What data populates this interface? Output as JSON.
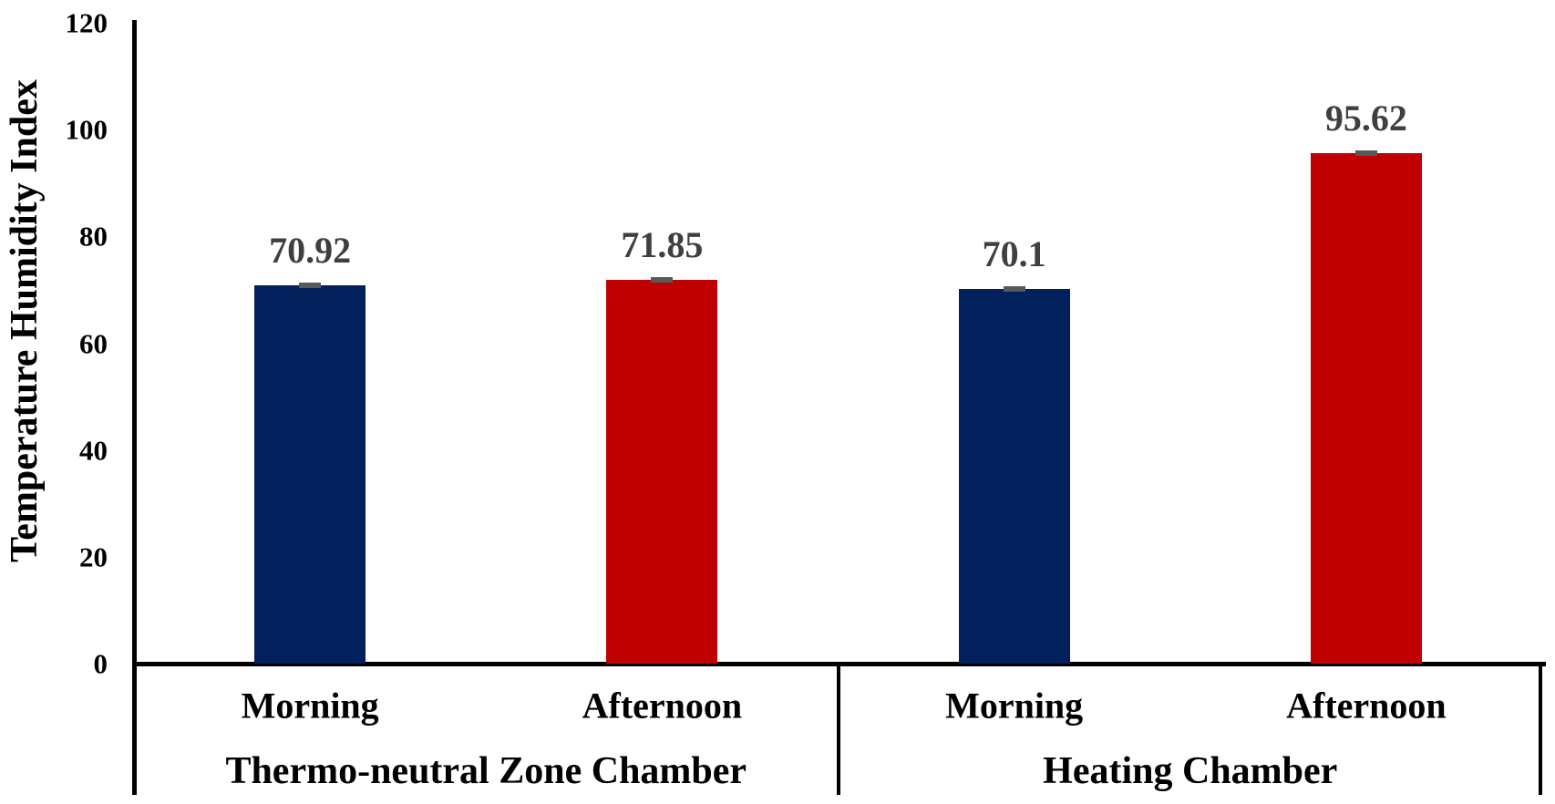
{
  "chart_data": {
    "type": "bar",
    "title": "",
    "xlabel": "",
    "ylabel": "Temperature Humidity Index",
    "ylim": [
      0,
      120
    ],
    "yticks": [
      0,
      20,
      40,
      60,
      80,
      100,
      120
    ],
    "grid": false,
    "legend": "none",
    "has_error_caps": true,
    "groups": [
      {
        "label": "Thermo-neutral Zone Chamber",
        "categories": [
          "Morning",
          "Afternoon"
        ],
        "values": [
          70.92,
          71.85
        ],
        "value_labels": [
          "70.92",
          "71.85"
        ]
      },
      {
        "label": "Heating Chamber",
        "categories": [
          "Morning",
          "Afternoon"
        ],
        "values": [
          70.1,
          95.62
        ],
        "value_labels": [
          "70.1",
          "95.62"
        ]
      }
    ],
    "series_colors": {
      "Morning": "#02215C",
      "Afternoon": "#C00000"
    },
    "value_label_color": "#3F3F3F",
    "error_bar_color": "#595959",
    "axis_color": "#000000",
    "background_color": "#FFFFFF"
  }
}
